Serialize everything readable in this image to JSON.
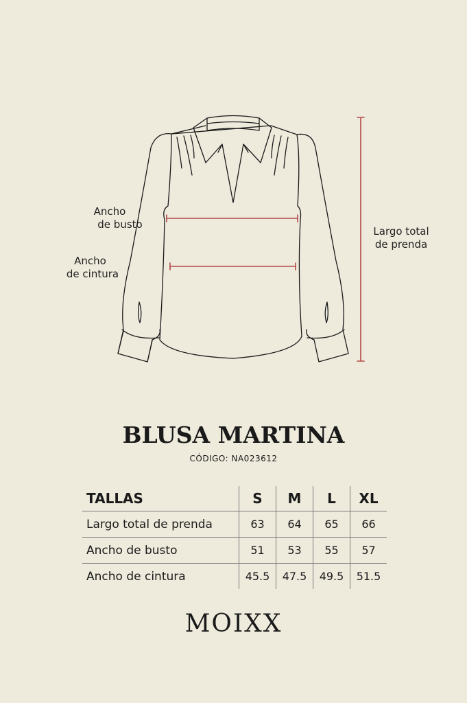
{
  "diagram": {
    "labels": {
      "bust": [
        "Ancho",
        "de busto"
      ],
      "waist": [
        "Ancho",
        "de cintura"
      ],
      "length": [
        "Largo total",
        "de prenda"
      ]
    },
    "measure_color": "#b5474a",
    "line_color": "#1a1a1a"
  },
  "product": {
    "title": "BLUSA MARTINA",
    "code": "CÓDIGO: NA023612"
  },
  "size_table": {
    "header": [
      "TALLAS",
      "S",
      "M",
      "L",
      "XL"
    ],
    "rows": [
      {
        "label": "Largo total de prenda",
        "values": [
          "63",
          "64",
          "65",
          "66"
        ]
      },
      {
        "label": "Ancho de busto",
        "values": [
          "51",
          "53",
          "55",
          "57"
        ]
      },
      {
        "label": "Ancho de cintura",
        "values": [
          "45.5",
          "47.5",
          "49.5",
          "51.5"
        ]
      }
    ]
  },
  "brand": {
    "logo": "MOIXX"
  },
  "colors": {
    "background": "#eeeadc",
    "text": "#1a1a1a"
  }
}
